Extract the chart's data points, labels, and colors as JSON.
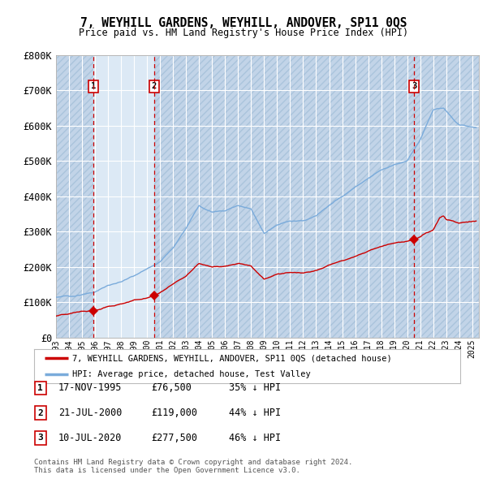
{
  "title": "7, WEYHILL GARDENS, WEYHILL, ANDOVER, SP11 0QS",
  "subtitle": "Price paid vs. HM Land Registry's House Price Index (HPI)",
  "sale_points": [
    {
      "date_num": 1995.88,
      "value": 76500,
      "label": "1"
    },
    {
      "date_num": 2000.55,
      "value": 119000,
      "label": "2"
    },
    {
      "date_num": 2020.52,
      "value": 277500,
      "label": "3"
    }
  ],
  "sale_labels": [
    {
      "num": "1",
      "date": "17-NOV-1995",
      "price": "£76,500",
      "hpi": "35% ↓ HPI"
    },
    {
      "num": "2",
      "date": "21-JUL-2000",
      "price": "£119,000",
      "hpi": "44% ↓ HPI"
    },
    {
      "num": "3",
      "date": "10-JUL-2020",
      "price": "£277,500",
      "hpi": "46% ↓ HPI"
    }
  ],
  "legend_entries": [
    {
      "label": "7, WEYHILL GARDENS, WEYHILL, ANDOVER, SP11 0QS (detached house)",
      "color": "#cc0000"
    },
    {
      "label": "HPI: Average price, detached house, Test Valley",
      "color": "#7aabdb"
    }
  ],
  "footer": "Contains HM Land Registry data © Crown copyright and database right 2024.\nThis data is licensed under the Open Government Licence v3.0.",
  "ylim": [
    0,
    800000
  ],
  "xlim": [
    1993.0,
    2025.5
  ],
  "yticks": [
    0,
    100000,
    200000,
    300000,
    400000,
    500000,
    600000,
    700000,
    800000
  ],
  "ytick_labels": [
    "£0",
    "£100K",
    "£200K",
    "£300K",
    "£400K",
    "£500K",
    "£600K",
    "£700K",
    "£800K"
  ],
  "background_color": "#ffffff",
  "plot_bg_color": "#dce9f5",
  "hatched_bg_color": "#c2d4e8",
  "grid_color": "#ffffff",
  "sale_line_color": "#cc0000",
  "hpi_line_color": "#7aabdb",
  "dashed_line_color": "#cc0000",
  "vline_x": [
    1995.88,
    2000.55,
    2020.52
  ]
}
